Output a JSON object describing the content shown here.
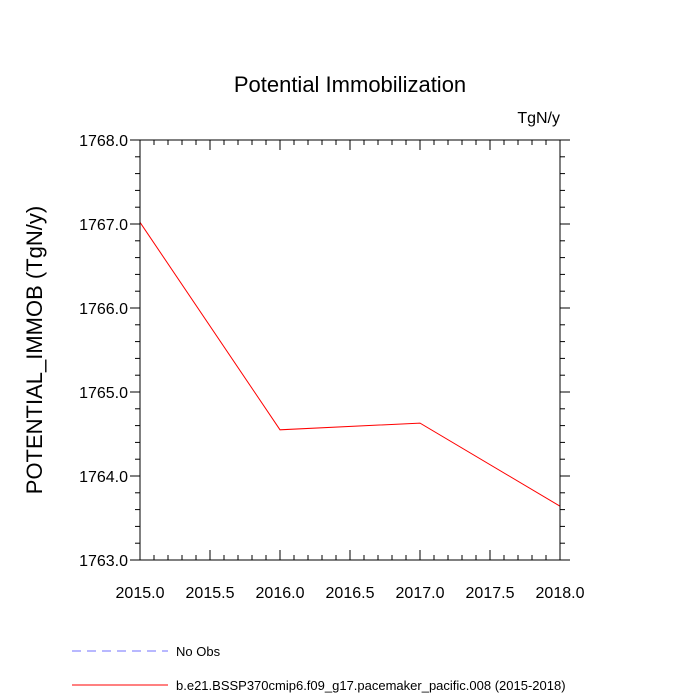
{
  "chart_data": {
    "type": "line",
    "title": "Potential Immobilization",
    "units_label": "TgN/y",
    "xlabel": "",
    "ylabel": "POTENTIAL_IMMOB  (TgN/y)",
    "xlim": [
      2015.0,
      2018.0
    ],
    "ylim": [
      1763.0,
      1768.0
    ],
    "x_ticks": [
      "2015.0",
      "2015.5",
      "2016.0",
      "2016.5",
      "2017.0",
      "2017.5",
      "2018.0"
    ],
    "y_ticks": [
      "1763.0",
      "1764.0",
      "1765.0",
      "1766.0",
      "1767.0",
      "1768.0"
    ],
    "x_tick_values": [
      2015.0,
      2015.5,
      2016.0,
      2016.5,
      2017.0,
      2017.5,
      2018.0
    ],
    "y_tick_values": [
      1763.0,
      1764.0,
      1765.0,
      1766.0,
      1767.0,
      1768.0
    ],
    "series": [
      {
        "name": "b.e21.BSSP370cmip6.f09_g17.pacemaker_pacific.008 (2015-2018)",
        "color": "#ff0000",
        "style": "solid",
        "x": [
          2015.0,
          2016.0,
          2017.0,
          2018.0
        ],
        "values": [
          1767.02,
          1764.55,
          1764.63,
          1763.64
        ]
      }
    ],
    "legend": [
      {
        "label": "No Obs",
        "color": "#7070ff",
        "style": "dashed"
      },
      {
        "label": "b.e21.BSSP370cmip6.f09_g17.pacemaker_pacific.008 (2015-2018)",
        "color": "#ff0000",
        "style": "solid"
      }
    ],
    "legend_position": "bottom-left"
  }
}
